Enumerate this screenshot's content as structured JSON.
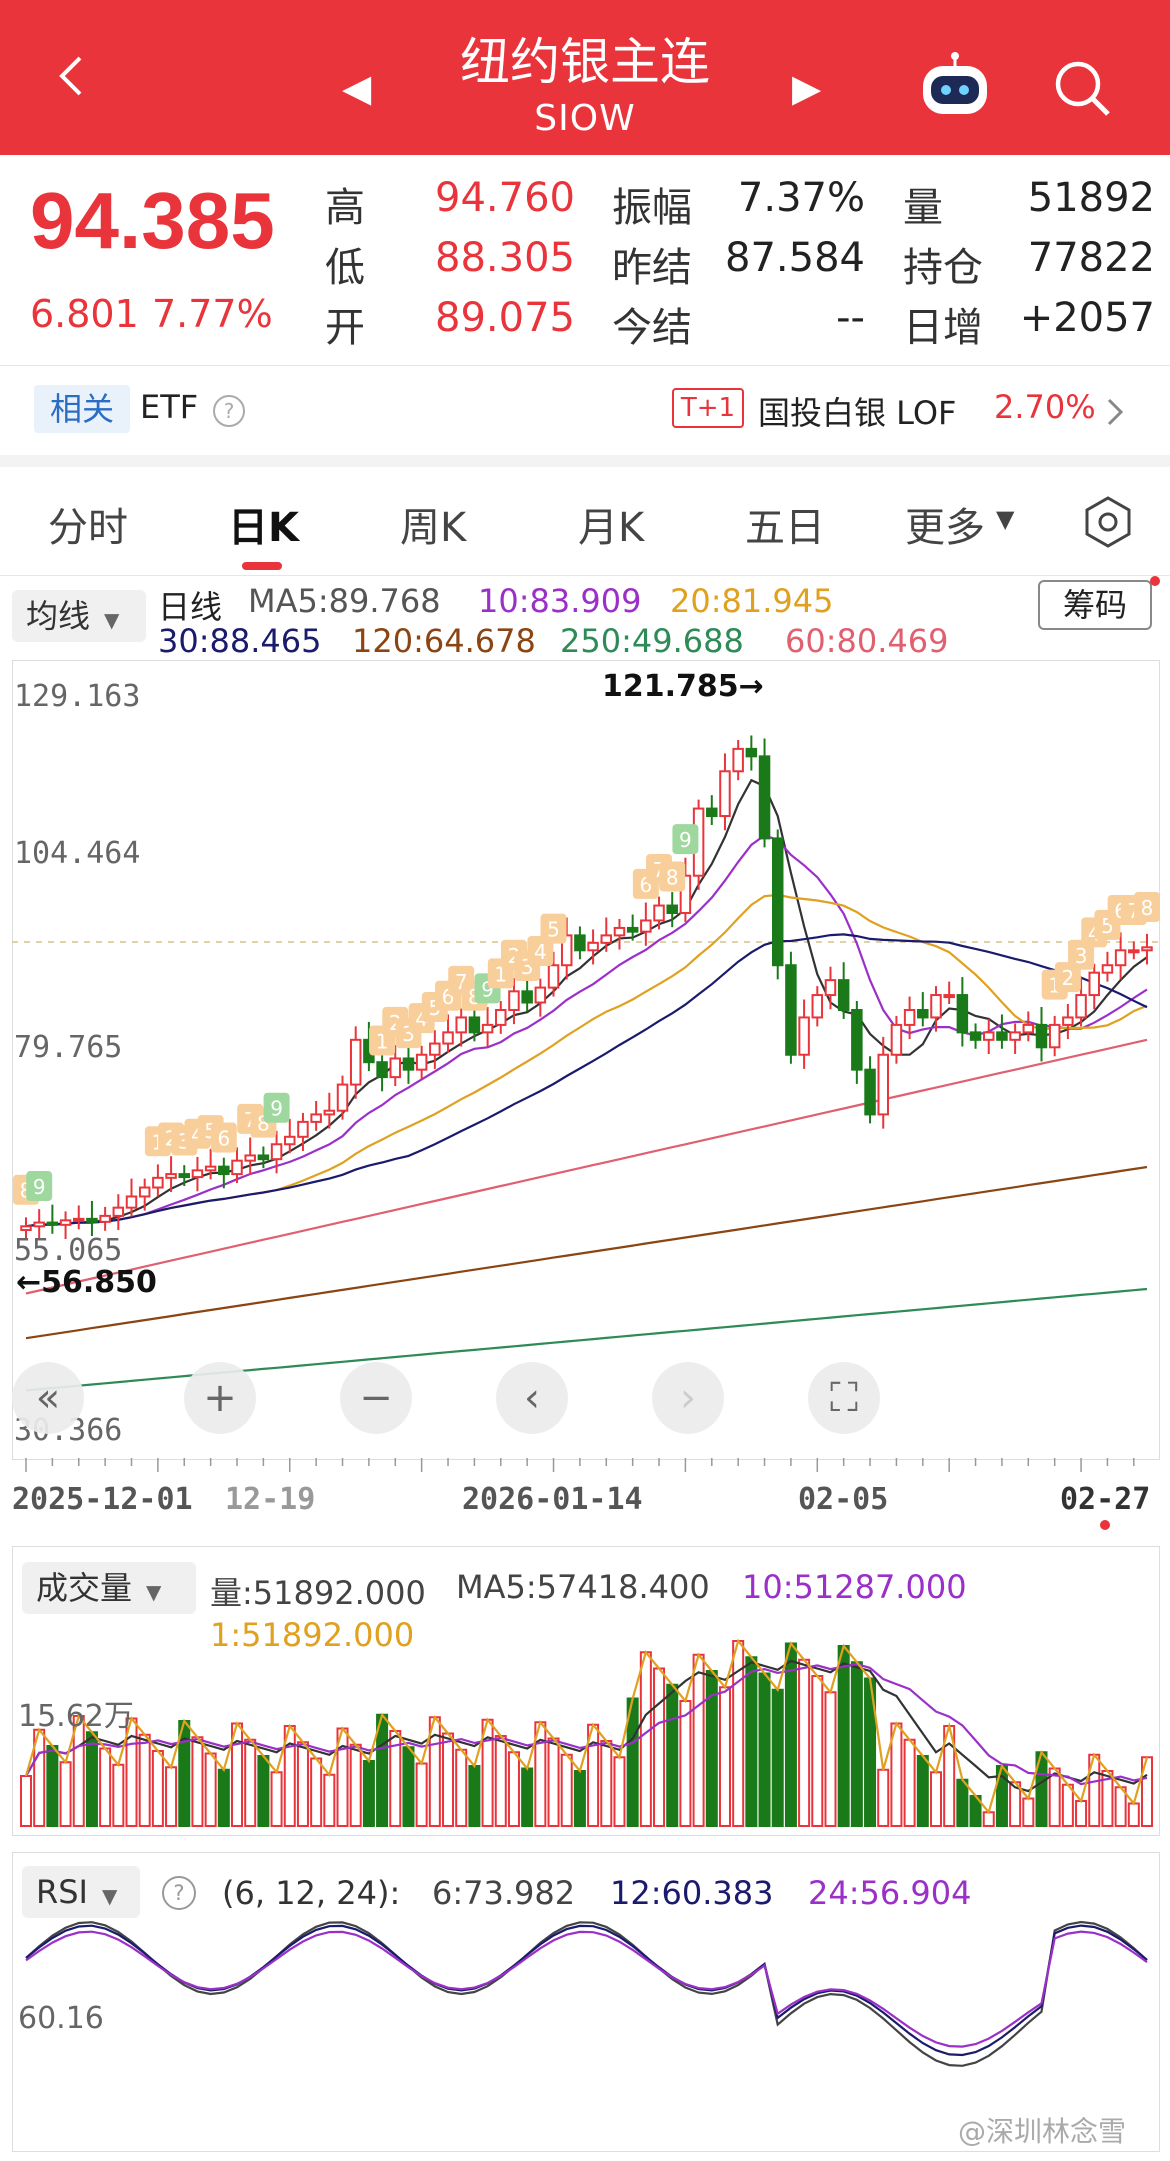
{
  "header": {
    "title": "纽约银主连",
    "symbol": "SIOW",
    "colors": {
      "bg": "#e8343a"
    }
  },
  "quote": {
    "last": "94.385",
    "change": "6.801",
    "change_pct": "7.77%",
    "rows": [
      {
        "l1": "高",
        "v1": "94.760",
        "l2": "振幅",
        "v2": "7.37%",
        "l3": "量",
        "v3": "51892"
      },
      {
        "l1": "低",
        "v1": "88.305",
        "l2": "昨结",
        "v2": "87.584",
        "l3": "持仓",
        "v3": "77822"
      },
      {
        "l1": "开",
        "v1": "89.075",
        "l2": "今结",
        "v2": "--",
        "l3": "日增",
        "v3": "+2057"
      }
    ]
  },
  "related": {
    "tag": "相关",
    "etf": "ETF",
    "badge": "T+1",
    "fund": "国投白银 LOF",
    "fund_chg": "2.70%"
  },
  "tabs": [
    "分时",
    "日K",
    "周K",
    "月K",
    "五日",
    "更多"
  ],
  "kline": {
    "ma_selector": "均线",
    "period_label": "日线",
    "ma5": "MA5:89.768",
    "ma10": "10:83.909",
    "ma20": "20:81.945",
    "ma30": "30:88.465",
    "ma120": "120:64.678",
    "ma250": "250:49.688",
    "ma60": "60:80.469",
    "chips_button": "筹码",
    "y_labels": [
      "129.163",
      "104.464",
      "79.765",
      "55.065",
      "30.366"
    ],
    "high_mark": "121.785→",
    "low_mark": "←56.850",
    "dates": [
      "2025-12-01",
      "12-19",
      "2026-01-14",
      "02-05",
      "02-27"
    ],
    "td_high": [
      "8",
      "9",
      "1",
      "2",
      "3",
      "4",
      "5",
      "6",
      "7",
      "8",
      "9",
      "1",
      "2",
      "3",
      "4",
      "5",
      "6",
      "7",
      "8",
      "9",
      "1",
      "2",
      "3",
      "4",
      "5",
      "6",
      "7",
      "8",
      "9"
    ],
    "td_recent": [
      "1",
      "2",
      "3",
      "4",
      "5",
      "6",
      "7",
      "8"
    ]
  },
  "volume": {
    "selector": "成交量",
    "vol": "量:51892.000",
    "ma5": "MA5:57418.400",
    "ma10": "10:51287.000",
    "ma1": "1:51892.000",
    "y_label": "15.62万"
  },
  "rsi": {
    "selector": "RSI",
    "params": "(6, 12, 24):",
    "r6": "6:73.982",
    "r12": "12:60.383",
    "r24": "24:56.904",
    "y_label": "60.16"
  },
  "watermark": "@深圳林念雪",
  "colors": {
    "up": "#e8343a",
    "down": "#1a7a1a",
    "ma5": "#333333",
    "ma10": "#9b30c8",
    "ma20": "#e0a020",
    "ma30": "#1b1b6e",
    "ma60": "#e06070",
    "ma120": "#8b4513",
    "ma250": "#2e8b57"
  }
}
